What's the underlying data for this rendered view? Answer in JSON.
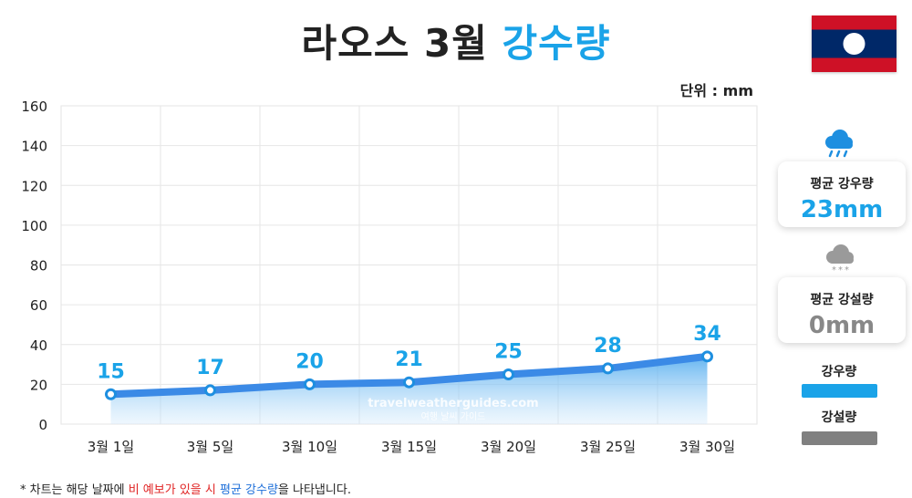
{
  "header": {
    "title_main": "라오스 3월",
    "title_accent": "강수량",
    "unit_label": "단위 : mm"
  },
  "flag": {
    "name": "laos-flag",
    "colors": {
      "red": "#ce1126",
      "blue": "#002868",
      "white": "#ffffff"
    }
  },
  "chart_data": {
    "type": "area",
    "title": "라오스 3월 강수량",
    "categories": [
      "3월 1일",
      "3월 5일",
      "3월 10일",
      "3월 15일",
      "3월 20일",
      "3월 25일",
      "3월 30일"
    ],
    "series": [
      {
        "name": "강우량",
        "values": [
          15,
          17,
          20,
          21,
          25,
          28,
          34
        ]
      }
    ],
    "ylim": [
      0,
      160
    ],
    "yticks": [
      0,
      20,
      40,
      60,
      80,
      100,
      120,
      140,
      160
    ],
    "ylabel": "",
    "xlabel": "",
    "grid": true,
    "line_color": "#3b8ae6",
    "label_color": "#1aa3e8",
    "watermark_line1": "travelweatherguides.com",
    "watermark_line2": "여행 날씨 가이드"
  },
  "sidebar": {
    "rain_icon": "rain-cloud-icon",
    "snow_icon": "snow-cloud-icon",
    "rain_card": {
      "label": "평균 강우량",
      "value": "23mm",
      "color": "#1aa3e8"
    },
    "snow_card": {
      "label": "평균 강설량",
      "value": "0mm",
      "color": "#888888"
    },
    "legend": [
      {
        "label": "강우량",
        "color": "#1aa3e8"
      },
      {
        "label": "강설량",
        "color": "#808080"
      }
    ]
  },
  "footnote": {
    "prefix": "* 차트는 해당 날짜에 ",
    "red": "비 예보가 있을 시",
    "space": " ",
    "blue": "평균 강수량",
    "suffix": "을 나타냅니다."
  }
}
